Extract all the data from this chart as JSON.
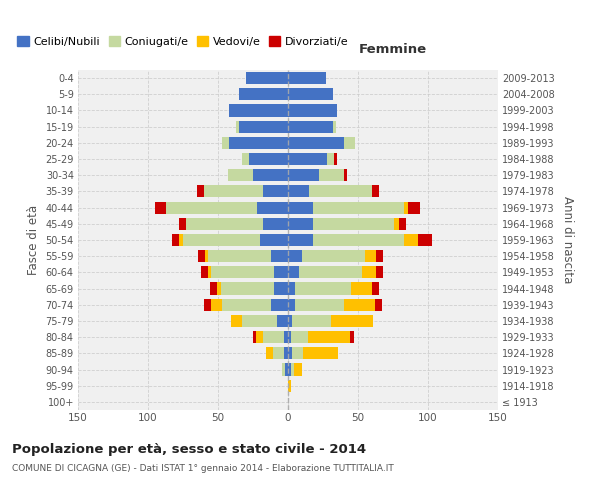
{
  "age_groups": [
    "100+",
    "95-99",
    "90-94",
    "85-89",
    "80-84",
    "75-79",
    "70-74",
    "65-69",
    "60-64",
    "55-59",
    "50-54",
    "45-49",
    "40-44",
    "35-39",
    "30-34",
    "25-29",
    "20-24",
    "15-19",
    "10-14",
    "5-9",
    "0-4"
  ],
  "birth_years": [
    "≤ 1913",
    "1914-1918",
    "1919-1923",
    "1924-1928",
    "1929-1933",
    "1934-1938",
    "1939-1943",
    "1944-1948",
    "1949-1953",
    "1954-1958",
    "1959-1963",
    "1964-1968",
    "1969-1973",
    "1974-1978",
    "1979-1983",
    "1984-1988",
    "1989-1993",
    "1994-1998",
    "1999-2003",
    "2004-2008",
    "2009-2013"
  ],
  "male": {
    "celibi": [
      0,
      0,
      2,
      3,
      3,
      8,
      12,
      10,
      10,
      12,
      20,
      18,
      22,
      18,
      25,
      28,
      42,
      35,
      42,
      35,
      30
    ],
    "coniugati": [
      0,
      0,
      2,
      8,
      15,
      25,
      35,
      38,
      45,
      45,
      55,
      55,
      65,
      42,
      18,
      5,
      5,
      2,
      0,
      0,
      0
    ],
    "vedovi": [
      0,
      0,
      0,
      5,
      5,
      8,
      8,
      3,
      2,
      2,
      3,
      0,
      0,
      0,
      0,
      0,
      0,
      0,
      0,
      0,
      0
    ],
    "divorziati": [
      0,
      0,
      0,
      0,
      2,
      0,
      5,
      5,
      5,
      5,
      5,
      5,
      8,
      5,
      0,
      0,
      0,
      0,
      0,
      0,
      0
    ]
  },
  "female": {
    "nubili": [
      0,
      0,
      2,
      3,
      2,
      3,
      5,
      5,
      8,
      10,
      18,
      18,
      18,
      15,
      22,
      28,
      40,
      32,
      35,
      32,
      27
    ],
    "coniugate": [
      0,
      0,
      2,
      8,
      12,
      28,
      35,
      40,
      45,
      45,
      65,
      58,
      65,
      45,
      18,
      5,
      8,
      2,
      0,
      0,
      0
    ],
    "vedove": [
      0,
      2,
      6,
      25,
      30,
      30,
      22,
      15,
      10,
      8,
      10,
      3,
      3,
      0,
      0,
      0,
      0,
      0,
      0,
      0,
      0
    ],
    "divorziate": [
      0,
      0,
      0,
      0,
      3,
      0,
      5,
      5,
      5,
      5,
      10,
      5,
      8,
      5,
      2,
      2,
      0,
      0,
      0,
      0,
      0
    ]
  },
  "colors": {
    "celibi": "#4472c4",
    "coniugati": "#c5d9a0",
    "vedovi": "#ffc000",
    "divorziati": "#cc0000"
  },
  "legend_labels": [
    "Celibi/Nubili",
    "Coniugati/e",
    "Vedovi/e",
    "Divorziati/e"
  ],
  "title": "Popolazione per età, sesso e stato civile - 2014",
  "subtitle": "COMUNE DI CICAGNA (GE) - Dati ISTAT 1° gennaio 2014 - Elaborazione TUTTITALIA.IT",
  "ylabel_left": "Fasce di età",
  "ylabel_right": "Anni di nascita",
  "xlabel_right": "Femmine",
  "xlim": 150,
  "bg_color": "#ffffff",
  "grid_color": "#cccccc",
  "ax_bg_color": "#f0f0f0"
}
